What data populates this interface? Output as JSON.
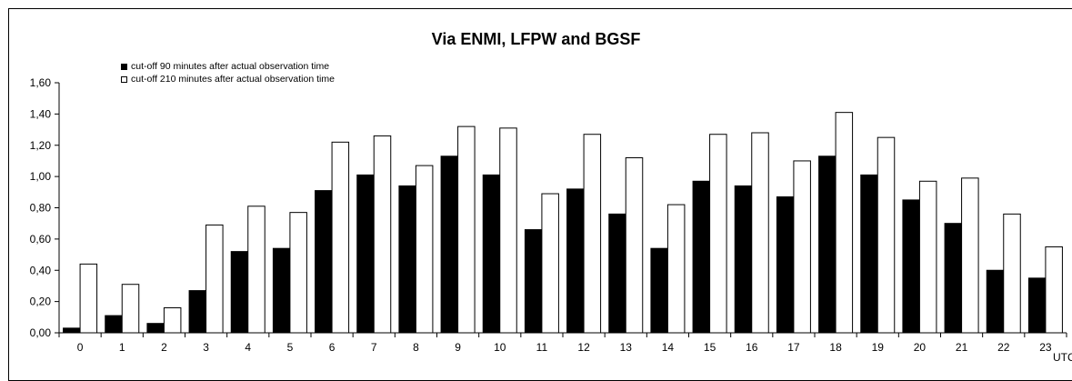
{
  "chart_data": {
    "type": "bar",
    "title": "Via ENMI, LFPW and BGSF",
    "xlabel": "UTC",
    "ylabel": "",
    "ylim": [
      0,
      1.6
    ],
    "yticks": [
      "0,00",
      "0,20",
      "0,40",
      "0,60",
      "0,80",
      "1,00",
      "1,20",
      "1,40",
      "1,60"
    ],
    "categories": [
      "0",
      "1",
      "2",
      "3",
      "4",
      "5",
      "6",
      "7",
      "8",
      "9",
      "10",
      "11",
      "12",
      "13",
      "14",
      "15",
      "16",
      "17",
      "18",
      "19",
      "20",
      "21",
      "22",
      "23"
    ],
    "legend_position": "top-left",
    "series": [
      {
        "name": "cut-off 90 minutes after actual observation time",
        "color": "#000000",
        "values": [
          0.03,
          0.11,
          0.06,
          0.27,
          0.52,
          0.54,
          0.91,
          1.01,
          0.94,
          1.13,
          1.01,
          0.66,
          0.92,
          0.76,
          0.54,
          0.97,
          0.94,
          0.87,
          1.13,
          1.01,
          0.85,
          0.7,
          0.4,
          0.35
        ]
      },
      {
        "name": "cut-off 210 minutes after actual observation time",
        "color": "#ffffff",
        "values": [
          0.44,
          0.31,
          0.16,
          0.69,
          0.81,
          0.77,
          1.22,
          1.26,
          1.07,
          1.32,
          1.31,
          0.89,
          1.27,
          1.12,
          0.82,
          1.27,
          1.28,
          1.1,
          1.41,
          1.25,
          0.97,
          0.99,
          0.76,
          0.55
        ]
      }
    ]
  }
}
